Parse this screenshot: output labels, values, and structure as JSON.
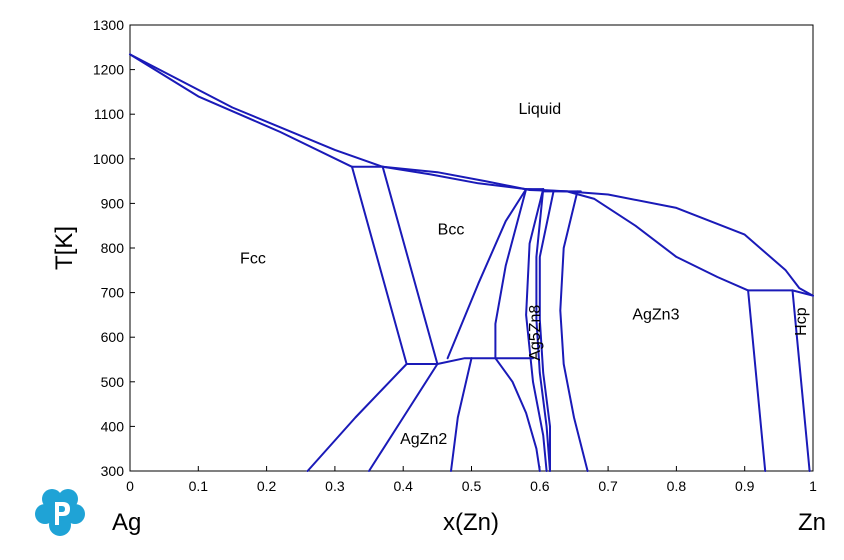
{
  "chart_data": {
    "type": "line",
    "title": "",
    "xlabel": "x(Zn)",
    "ylabel": "T[K]",
    "xlim": [
      0,
      1
    ],
    "ylim": [
      300,
      1300
    ],
    "x_ticks": [
      "0",
      "0.1",
      "0.2",
      "0.3",
      "0.4",
      "0.5",
      "0.6",
      "0.7",
      "0.8",
      "0.9",
      "1"
    ],
    "y_ticks": [
      "300",
      "400",
      "500",
      "600",
      "700",
      "800",
      "900",
      "1000",
      "1100",
      "1200",
      "1300"
    ],
    "left_end_label": "Ag",
    "right_end_label": "Zn",
    "line_color": "#1a1ab8",
    "grid": false,
    "regions": [
      {
        "label": "Liquid",
        "x": 0.6,
        "y": 1100
      },
      {
        "label": "Fcc",
        "x": 0.18,
        "y": 765
      },
      {
        "label": "Bcc",
        "x": 0.47,
        "y": 830
      },
      {
        "label": "AgZn3",
        "x": 0.77,
        "y": 640
      },
      {
        "label": "AgZn2",
        "x": 0.43,
        "y": 360
      },
      {
        "label": "Ag5Zn8",
        "x": 0.6,
        "y": 610,
        "rotate": -90
      },
      {
        "label": "Hcp",
        "x": 0.99,
        "y": 635,
        "rotate": -90
      }
    ],
    "series": [
      {
        "points": [
          [
            0,
            1234
          ],
          [
            0.15,
            1115
          ],
          [
            0.3,
            1020
          ],
          [
            0.37,
            982
          ]
        ]
      },
      {
        "points": [
          [
            0,
            1234
          ],
          [
            0.1,
            1140
          ],
          [
            0.22,
            1060
          ],
          [
            0.325,
            982
          ]
        ]
      },
      {
        "points": [
          [
            0.325,
            982
          ],
          [
            0.37,
            982
          ]
        ]
      },
      {
        "points": [
          [
            0.37,
            982
          ],
          [
            0.45,
            970
          ],
          [
            0.52,
            950
          ],
          [
            0.585,
            930
          ],
          [
            0.64,
            927
          ],
          [
            0.7,
            920
          ],
          [
            0.8,
            890
          ],
          [
            0.9,
            830
          ],
          [
            0.96,
            750
          ],
          [
            0.98,
            710
          ],
          [
            1,
            693
          ]
        ]
      },
      {
        "points": [
          [
            0.37,
            982
          ],
          [
            0.44,
            965
          ],
          [
            0.51,
            945
          ],
          [
            0.58,
            932
          ],
          [
            0.64,
            927
          ]
        ]
      },
      {
        "points": [
          [
            0.64,
            927
          ],
          [
            0.68,
            910
          ],
          [
            0.74,
            850
          ],
          [
            0.8,
            780
          ],
          [
            0.86,
            735
          ],
          [
            0.905,
            705
          ]
        ]
      },
      {
        "points": [
          [
            0.325,
            982
          ],
          [
            0.405,
            540
          ]
        ]
      },
      {
        "points": [
          [
            0.37,
            982
          ],
          [
            0.45,
            540
          ]
        ]
      },
      {
        "points": [
          [
            0.405,
            540
          ],
          [
            0.45,
            540
          ]
        ]
      },
      {
        "points": [
          [
            0.45,
            540
          ],
          [
            0.49,
            553
          ],
          [
            0.59,
            553
          ]
        ]
      },
      {
        "points": [
          [
            0.58,
            932
          ],
          [
            0.605,
            932
          ]
        ]
      },
      {
        "points": [
          [
            0.58,
            932
          ],
          [
            0.55,
            760
          ],
          [
            0.535,
            630
          ],
          [
            0.535,
            553
          ]
        ]
      },
      {
        "points": [
          [
            0.465,
            553
          ],
          [
            0.51,
            720
          ],
          [
            0.55,
            860
          ],
          [
            0.58,
            932
          ]
        ]
      },
      {
        "points": [
          [
            0.605,
            932
          ],
          [
            0.585,
            810
          ],
          [
            0.58,
            650
          ],
          [
            0.59,
            500
          ],
          [
            0.605,
            380
          ],
          [
            0.61,
            300
          ]
        ]
      },
      {
        "points": [
          [
            0.605,
            932
          ],
          [
            0.595,
            780
          ],
          [
            0.595,
            640
          ],
          [
            0.6,
            520
          ],
          [
            0.61,
            400
          ],
          [
            0.615,
            300
          ]
        ]
      },
      {
        "points": [
          [
            0.62,
            927
          ],
          [
            0.6,
            780
          ],
          [
            0.6,
            640
          ],
          [
            0.605,
            520
          ],
          [
            0.615,
            400
          ],
          [
            0.615,
            300
          ]
        ]
      },
      {
        "points": [
          [
            0.535,
            553
          ],
          [
            0.56,
            500
          ],
          [
            0.58,
            430
          ],
          [
            0.595,
            350
          ],
          [
            0.6,
            300
          ]
        ]
      },
      {
        "points": [
          [
            0.605,
            927
          ],
          [
            0.66,
            927
          ]
        ]
      },
      {
        "points": [
          [
            0.655,
            927
          ],
          [
            0.635,
            800
          ],
          [
            0.63,
            660
          ],
          [
            0.635,
            540
          ],
          [
            0.65,
            420
          ],
          [
            0.67,
            300
          ]
        ]
      },
      {
        "points": [
          [
            0.405,
            540
          ],
          [
            0.33,
            420
          ],
          [
            0.26,
            300
          ]
        ]
      },
      {
        "points": [
          [
            0.45,
            540
          ],
          [
            0.4,
            420
          ],
          [
            0.35,
            300
          ]
        ]
      },
      {
        "points": [
          [
            0.5,
            553
          ],
          [
            0.48,
            420
          ],
          [
            0.47,
            300
          ]
        ]
      },
      {
        "points": [
          [
            0.905,
            705
          ],
          [
            0.97,
            705
          ]
        ]
      },
      {
        "points": [
          [
            0.905,
            705
          ],
          [
            0.93,
            300
          ]
        ]
      },
      {
        "points": [
          [
            0.97,
            705
          ],
          [
            0.995,
            300
          ]
        ]
      },
      {
        "points": [
          [
            0.97,
            705
          ],
          [
            1,
            693
          ]
        ]
      }
    ]
  }
}
